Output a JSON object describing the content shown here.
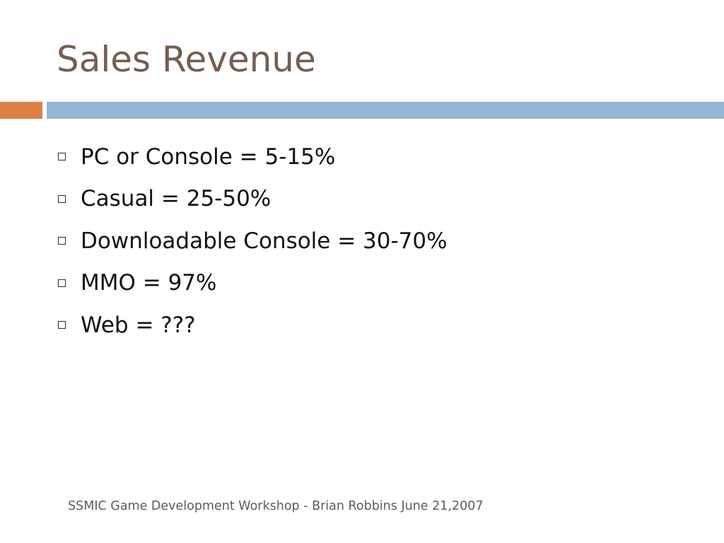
{
  "slide": {
    "title": "Sales Revenue",
    "bullets": [
      "PC or Console = 5-15%",
      "Casual = 25-50%",
      "Downloadable Console = 30-70%",
      "MMO = 97%",
      "Web = ???"
    ],
    "footer": "SSMIC Game Development Workshop - Brian Robbins June 21,2007"
  },
  "colors": {
    "title": "#765d50",
    "accent_orange": "#dd8047",
    "accent_blue": "#94b6d2"
  },
  "icons": {
    "bullet": "hollow-square-icon"
  }
}
